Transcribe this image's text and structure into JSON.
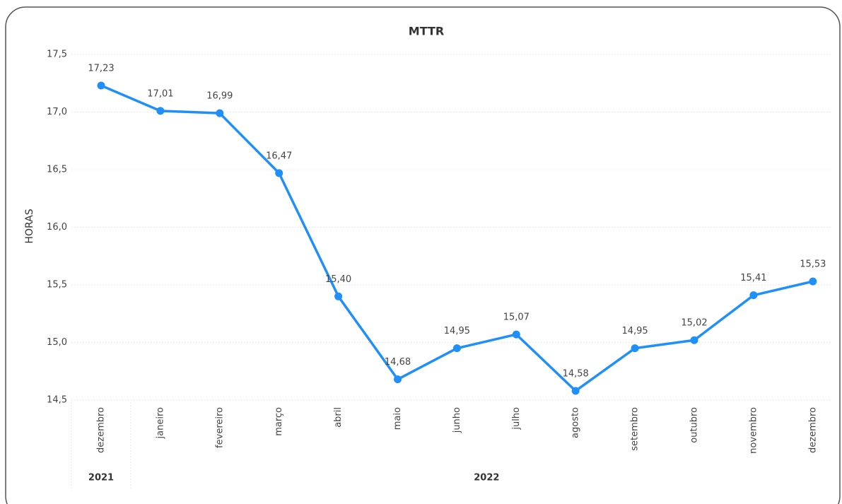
{
  "chart_data": {
    "type": "line",
    "title": "MTTR",
    "y_label": "HORAS",
    "categories": [
      "dezembro",
      "janeiro",
      "fevereiro",
      "março",
      "abril",
      "maio",
      "junho",
      "julho",
      "agosto",
      "setembro",
      "outubro",
      "novembro",
      "dezembro"
    ],
    "x_groups": [
      {
        "label": "2021",
        "span": 1
      },
      {
        "label": "2022",
        "span": 12
      }
    ],
    "series": [
      {
        "name": "MTTR",
        "color": "#1f8ffa",
        "values": [
          17.23,
          17.01,
          16.99,
          16.47,
          15.4,
          14.68,
          14.95,
          15.07,
          14.58,
          14.95,
          15.02,
          15.41,
          15.53
        ],
        "value_labels": [
          "17,23",
          "17,01",
          "16,99",
          "16,47",
          "15,40",
          "14,68",
          "14,95",
          "15,07",
          "14,58",
          "14,95",
          "15,02",
          "15,41",
          "15,53"
        ]
      }
    ],
    "ylim": [
      14.5,
      17.5
    ],
    "yticks": [
      {
        "value": 14.5,
        "label": "14,5"
      },
      {
        "value": 15,
        "label": "15,0"
      },
      {
        "value": 15.5,
        "label": "15,5"
      },
      {
        "value": 16,
        "label": "16,0"
      },
      {
        "value": 16.5,
        "label": "16,5"
      },
      {
        "value": 17,
        "label": "17,0"
      },
      {
        "value": 17.5,
        "label": "17,5"
      }
    ],
    "grid": true
  }
}
